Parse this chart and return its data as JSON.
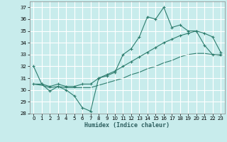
{
  "xlabel": "Humidex (Indice chaleur)",
  "bg_color": "#c8ecec",
  "grid_color": "#ffffff",
  "line_color": "#2e7d6e",
  "xlim": [
    -0.5,
    23.5
  ],
  "ylim": [
    28,
    37.5
  ],
  "yticks": [
    28,
    29,
    30,
    31,
    32,
    33,
    34,
    35,
    36,
    37
  ],
  "xticks": [
    0,
    1,
    2,
    3,
    4,
    5,
    6,
    7,
    8,
    9,
    10,
    11,
    12,
    13,
    14,
    15,
    16,
    17,
    18,
    19,
    20,
    21,
    22,
    23
  ],
  "line1_x": [
    0,
    1,
    2,
    3,
    4,
    5,
    6,
    7,
    8,
    9,
    10,
    11,
    12,
    13,
    14,
    15,
    16,
    17,
    18,
    19,
    20,
    21,
    22,
    23
  ],
  "line1_y": [
    32.0,
    30.5,
    29.9,
    30.3,
    30.0,
    29.5,
    28.5,
    28.2,
    31.0,
    31.2,
    31.5,
    33.0,
    33.5,
    34.5,
    36.2,
    36.0,
    37.0,
    35.3,
    35.5,
    35.0,
    35.0,
    33.8,
    33.0,
    33.0
  ],
  "line1_markers": [
    0,
    1,
    2,
    3,
    4,
    5,
    6,
    7,
    8,
    9,
    10,
    11,
    12,
    13,
    14,
    15,
    16,
    17,
    18,
    19,
    20,
    21,
    22,
    23
  ],
  "line2_x": [
    0,
    1,
    2,
    3,
    4,
    5,
    6,
    7,
    8,
    9,
    10,
    11,
    12,
    13,
    14,
    15,
    16,
    17,
    18,
    19,
    20,
    21,
    22,
    23
  ],
  "line2_y": [
    30.5,
    30.5,
    30.3,
    30.5,
    30.3,
    30.3,
    30.5,
    30.5,
    31.0,
    31.3,
    31.6,
    32.0,
    32.4,
    32.8,
    33.2,
    33.6,
    34.0,
    34.3,
    34.6,
    34.8,
    35.0,
    34.8,
    34.5,
    33.2
  ],
  "line3_x": [
    0,
    1,
    2,
    3,
    4,
    5,
    6,
    7,
    8,
    9,
    10,
    11,
    12,
    13,
    14,
    15,
    16,
    17,
    18,
    19,
    20,
    21,
    22,
    23
  ],
  "line3_y": [
    30.5,
    30.4,
    30.2,
    30.3,
    30.2,
    30.2,
    30.2,
    30.2,
    30.4,
    30.6,
    30.8,
    31.0,
    31.3,
    31.5,
    31.8,
    32.0,
    32.3,
    32.5,
    32.8,
    33.0,
    33.1,
    33.1,
    33.0,
    32.9
  ]
}
